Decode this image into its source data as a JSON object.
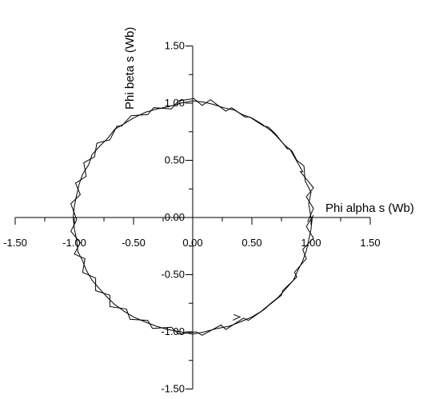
{
  "chart_data": {
    "type": "line",
    "title": "",
    "xlabel": "Phi alpha s (Wb)",
    "ylabel": "Phi beta s (Wb)",
    "xlim": [
      -1.5,
      1.5
    ],
    "ylim": [
      -1.5,
      1.5
    ],
    "x_ticks": [
      "-1.50",
      "-1.00",
      "-0.50",
      "0.00",
      "0.50",
      "1.00",
      "1.50"
    ],
    "y_ticks": [
      "-1.50",
      "-1.00",
      "-0.50",
      "0.00",
      "0.50",
      "1.00",
      "1.50"
    ],
    "axes_through_origin": true,
    "grid": false,
    "series": [
      {
        "values": [
          [
            1.0,
            0.0
          ],
          [
            0.98,
            0.12
          ],
          [
            1.0,
            0.22
          ],
          [
            0.95,
            0.32
          ],
          [
            0.94,
            0.45
          ],
          [
            0.88,
            0.5
          ],
          [
            0.84,
            0.58
          ],
          [
            0.78,
            0.63
          ],
          [
            0.71,
            0.71
          ],
          [
            0.66,
            0.76
          ],
          [
            0.58,
            0.82
          ],
          [
            0.5,
            0.87
          ],
          [
            0.42,
            0.9
          ],
          [
            0.35,
            0.94
          ],
          [
            0.26,
            0.96
          ],
          [
            0.17,
            0.99
          ],
          [
            0.09,
            1.01
          ],
          [
            0.0,
            1.02
          ],
          [
            -0.1,
            1.0
          ],
          [
            -0.2,
            0.97
          ],
          [
            -0.3,
            0.95
          ],
          [
            -0.4,
            0.92
          ],
          [
            -0.5,
            0.87
          ],
          [
            -0.58,
            0.82
          ],
          [
            -0.66,
            0.77
          ],
          [
            -0.72,
            0.69
          ],
          [
            -0.78,
            0.63
          ],
          [
            -0.85,
            0.55
          ],
          [
            -0.88,
            0.46
          ],
          [
            -0.93,
            0.38
          ],
          [
            -0.96,
            0.29
          ],
          [
            -0.98,
            0.2
          ],
          [
            -1.0,
            0.1
          ],
          [
            -1.01,
            0.0
          ],
          [
            -1.0,
            -0.1
          ],
          [
            -0.98,
            -0.2
          ],
          [
            -0.97,
            -0.3
          ],
          [
            -0.93,
            -0.38
          ],
          [
            -0.9,
            -0.46
          ],
          [
            -0.85,
            -0.55
          ],
          [
            -0.79,
            -0.62
          ],
          [
            -0.72,
            -0.7
          ],
          [
            -0.66,
            -0.76
          ],
          [
            -0.58,
            -0.82
          ],
          [
            -0.5,
            -0.87
          ],
          [
            -0.41,
            -0.91
          ],
          [
            -0.31,
            -0.95
          ],
          [
            -0.21,
            -0.98
          ],
          [
            -0.1,
            -1.0
          ],
          [
            0.0,
            -1.02
          ],
          [
            0.1,
            -1.0
          ],
          [
            0.21,
            -0.97
          ],
          [
            0.31,
            -0.95
          ],
          [
            0.41,
            -0.91
          ],
          [
            0.5,
            -0.87
          ],
          [
            0.58,
            -0.82
          ],
          [
            0.66,
            -0.75
          ],
          [
            0.72,
            -0.7
          ],
          [
            0.79,
            -0.62
          ],
          [
            0.85,
            -0.55
          ],
          [
            0.89,
            -0.46
          ],
          [
            0.93,
            -0.38
          ],
          [
            0.96,
            -0.29
          ],
          [
            0.98,
            -0.2
          ],
          [
            1.0,
            -0.1
          ],
          [
            1.01,
            0.0
          ]
        ]
      },
      {
        "values": [
          [
            0.97,
            -0.04
          ],
          [
            1.02,
            0.08
          ],
          [
            0.96,
            0.18
          ],
          [
            1.02,
            0.26
          ],
          [
            0.91,
            0.4
          ],
          [
            0.93,
            0.4
          ],
          [
            0.82,
            0.6
          ],
          [
            0.8,
            0.6
          ],
          [
            0.7,
            0.73
          ],
          [
            0.64,
            0.79
          ],
          [
            0.6,
            0.8
          ],
          [
            0.48,
            0.88
          ],
          [
            0.44,
            0.88
          ],
          [
            0.33,
            0.96
          ],
          [
            0.28,
            0.93
          ],
          [
            0.15,
            1.03
          ],
          [
            0.08,
            0.98
          ],
          [
            0.01,
            1.04
          ],
          [
            -0.12,
            1.02
          ],
          [
            -0.18,
            0.95
          ],
          [
            -0.33,
            0.96
          ],
          [
            -0.38,
            0.9
          ],
          [
            -0.52,
            0.89
          ],
          [
            -0.6,
            0.8
          ],
          [
            -0.64,
            0.8
          ],
          [
            -0.7,
            0.68
          ],
          [
            -0.81,
            0.65
          ],
          [
            -0.83,
            0.53
          ],
          [
            -0.92,
            0.48
          ],
          [
            -0.9,
            0.36
          ],
          [
            -0.99,
            0.3
          ],
          [
            -0.95,
            0.2
          ],
          [
            -1.03,
            0.12
          ],
          [
            -0.98,
            -0.02
          ],
          [
            -1.03,
            -0.12
          ],
          [
            -0.95,
            -0.22
          ],
          [
            -1.0,
            -0.32
          ],
          [
            -0.91,
            -0.36
          ],
          [
            -0.93,
            -0.48
          ],
          [
            -0.82,
            -0.53
          ],
          [
            -0.82,
            -0.64
          ],
          [
            -0.7,
            -0.68
          ],
          [
            -0.7,
            -0.78
          ],
          [
            -0.56,
            -0.8
          ],
          [
            -0.53,
            -0.89
          ],
          [
            -0.38,
            -0.9
          ],
          [
            -0.34,
            -0.97
          ],
          [
            -0.18,
            -0.96
          ],
          [
            -0.12,
            -1.02
          ],
          [
            0.03,
            -1.0
          ],
          [
            0.08,
            -1.03
          ],
          [
            0.24,
            -0.94
          ],
          [
            0.28,
            -0.98
          ],
          [
            0.43,
            -0.88
          ],
          [
            0.47,
            -0.9
          ],
          [
            0.61,
            -0.8
          ],
          [
            0.63,
            -0.78
          ],
          [
            0.75,
            -0.68
          ],
          [
            0.76,
            -0.64
          ],
          [
            0.88,
            -0.52
          ],
          [
            0.86,
            -0.48
          ],
          [
            0.96,
            -0.36
          ],
          [
            0.93,
            -0.28
          ],
          [
            1.02,
            -0.18
          ],
          [
            0.96,
            -0.08
          ],
          [
            1.02,
            0.02
          ]
        ]
      }
    ]
  }
}
